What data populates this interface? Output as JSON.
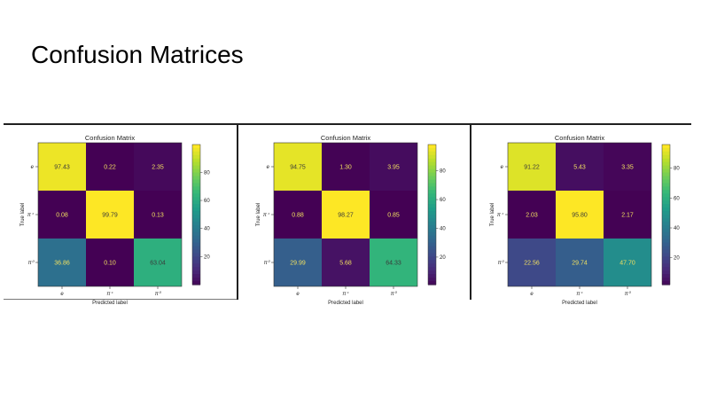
{
  "slide": {
    "title": "Confusion Matrices"
  },
  "chart_data": [
    {
      "type": "heatmap",
      "title": "Confusion Matrix",
      "xlabel": "Predicted label",
      "ylabel": "True label",
      "x_ticks": [
        "e",
        "π⁺",
        "π⁰"
      ],
      "y_ticks": [
        "e",
        "π⁺",
        "π⁰"
      ],
      "values": [
        [
          97.43,
          0.22,
          2.35
        ],
        [
          0.08,
          99.79,
          0.13
        ],
        [
          36.86,
          0.1,
          63.04
        ]
      ],
      "colorbar_ticks": [
        20,
        40,
        60,
        80
      ],
      "colormap": "viridis"
    },
    {
      "type": "heatmap",
      "title": "Confusion Matrix",
      "xlabel": "Predicted label",
      "ylabel": "True label",
      "x_ticks": [
        "e",
        "π⁺",
        "π⁰"
      ],
      "y_ticks": [
        "e",
        "π⁺",
        "π⁰"
      ],
      "values": [
        [
          94.75,
          1.3,
          3.95
        ],
        [
          0.88,
          98.27,
          0.85
        ],
        [
          29.99,
          5.68,
          64.33
        ]
      ],
      "colorbar_ticks": [
        20,
        40,
        60,
        80
      ],
      "colormap": "viridis"
    },
    {
      "type": "heatmap",
      "title": "Confusion Matrix",
      "xlabel": "Predicted label",
      "ylabel": "True label",
      "x_ticks": [
        "e",
        "π⁺",
        "π⁰"
      ],
      "y_ticks": [
        "e",
        "π⁺",
        "π⁰"
      ],
      "values": [
        [
          91.22,
          5.43,
          3.35
        ],
        [
          2.03,
          95.8,
          2.17
        ],
        [
          22.56,
          29.74,
          47.7
        ]
      ],
      "colorbar_ticks": [
        20,
        40,
        60,
        80
      ],
      "colormap": "viridis"
    }
  ]
}
